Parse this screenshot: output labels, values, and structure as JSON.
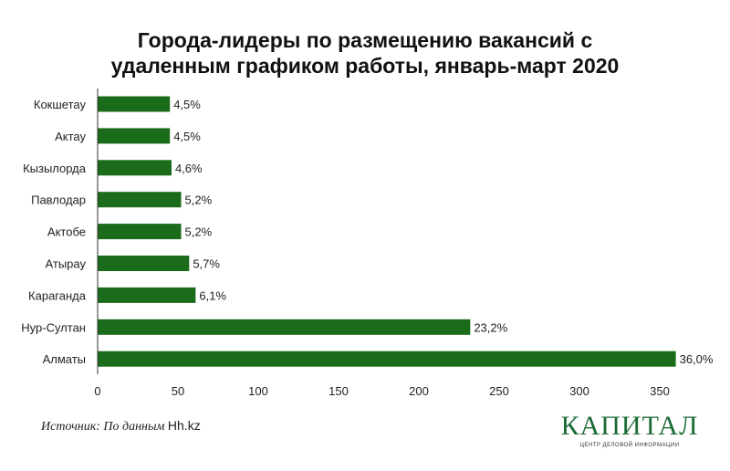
{
  "chart_data": {
    "type": "bar",
    "orientation": "horizontal",
    "title": "Города-лидеры по размещению вакансий с удаленным графиком работы, январь-март 2020",
    "title_lines": [
      "Города-лидеры по размещению вакансий с",
      "удаленным графиком работы, январь-март 2020"
    ],
    "categories": [
      "Кокшетау",
      "Актау",
      "Кызылорда",
      "Павлодар",
      "Актобе",
      "Атырау",
      "Караганда",
      "Нур-Султан",
      "Алматы"
    ],
    "values": [
      45,
      45,
      46,
      52,
      52,
      57,
      61,
      232,
      360
    ],
    "data_labels": [
      "4,5%",
      "4,5%",
      "4,6%",
      "5,2%",
      "5,2%",
      "5,7%",
      "6,1%",
      "23,2%",
      "36,0%"
    ],
    "xticks": [
      0,
      50,
      100,
      150,
      200,
      250,
      300,
      350
    ],
    "xlim": [
      0,
      370
    ],
    "xlabel": "",
    "ylabel": "",
    "grid": false,
    "bar_color": "#1a6b1a"
  },
  "source": {
    "prefix": "Источник: По данным",
    "site": "Hh.kz"
  },
  "logo": {
    "name": "КАПИТАЛ",
    "subtitle": "ЦЕНТР ДЕЛОВОЙ ИНФОРМАЦИИ"
  }
}
